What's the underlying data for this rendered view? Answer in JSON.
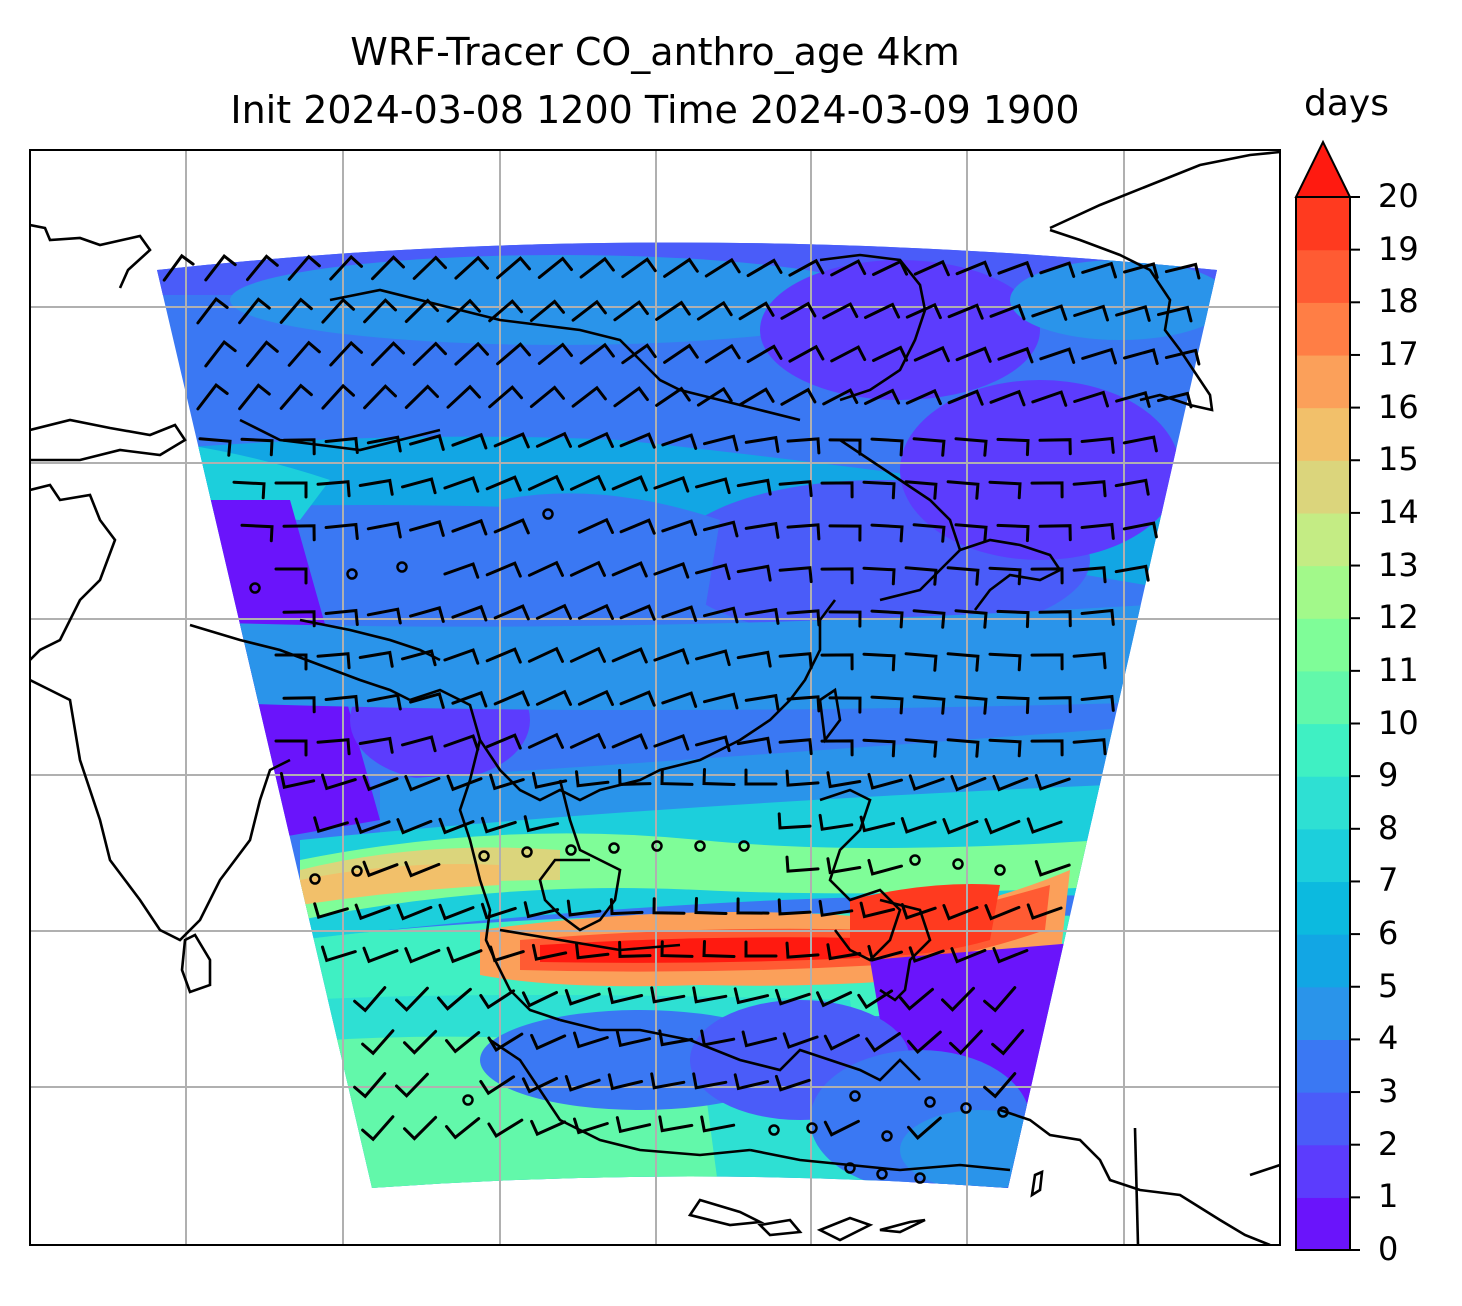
{
  "figure": {
    "title_line1": "WRF-Tracer CO_anthro_age 4km",
    "title_line2": "Init 2024-03-08 1200 Time 2024-03-09 1900"
  },
  "colorbar": {
    "units": "days",
    "min": 0,
    "max": 20,
    "extend": "max",
    "tick_labels": [
      "0",
      "1",
      "2",
      "3",
      "4",
      "5",
      "6",
      "7",
      "8",
      "9",
      "10",
      "11",
      "12",
      "13",
      "14",
      "15",
      "16",
      "17",
      "18",
      "19",
      "20"
    ],
    "colors": [
      "#6a14fb",
      "#5c3cfd",
      "#4a5cf9",
      "#3a78f3",
      "#2a94ea",
      "#12a6e4",
      "#0cbadf",
      "#1ccfdc",
      "#2ee0d3",
      "#3ff0c3",
      "#62f8aa",
      "#7ffd98",
      "#a2f98a",
      "#c4ec84",
      "#dbd57c",
      "#f2c06a",
      "#fba05a",
      "#ff7e45",
      "#ff5b33",
      "#ff3a1f",
      "#ff1a10"
    ]
  },
  "map": {
    "projection_note": "gridded map with coastlines, wind barbs and tracer age shading",
    "grid": true
  }
}
